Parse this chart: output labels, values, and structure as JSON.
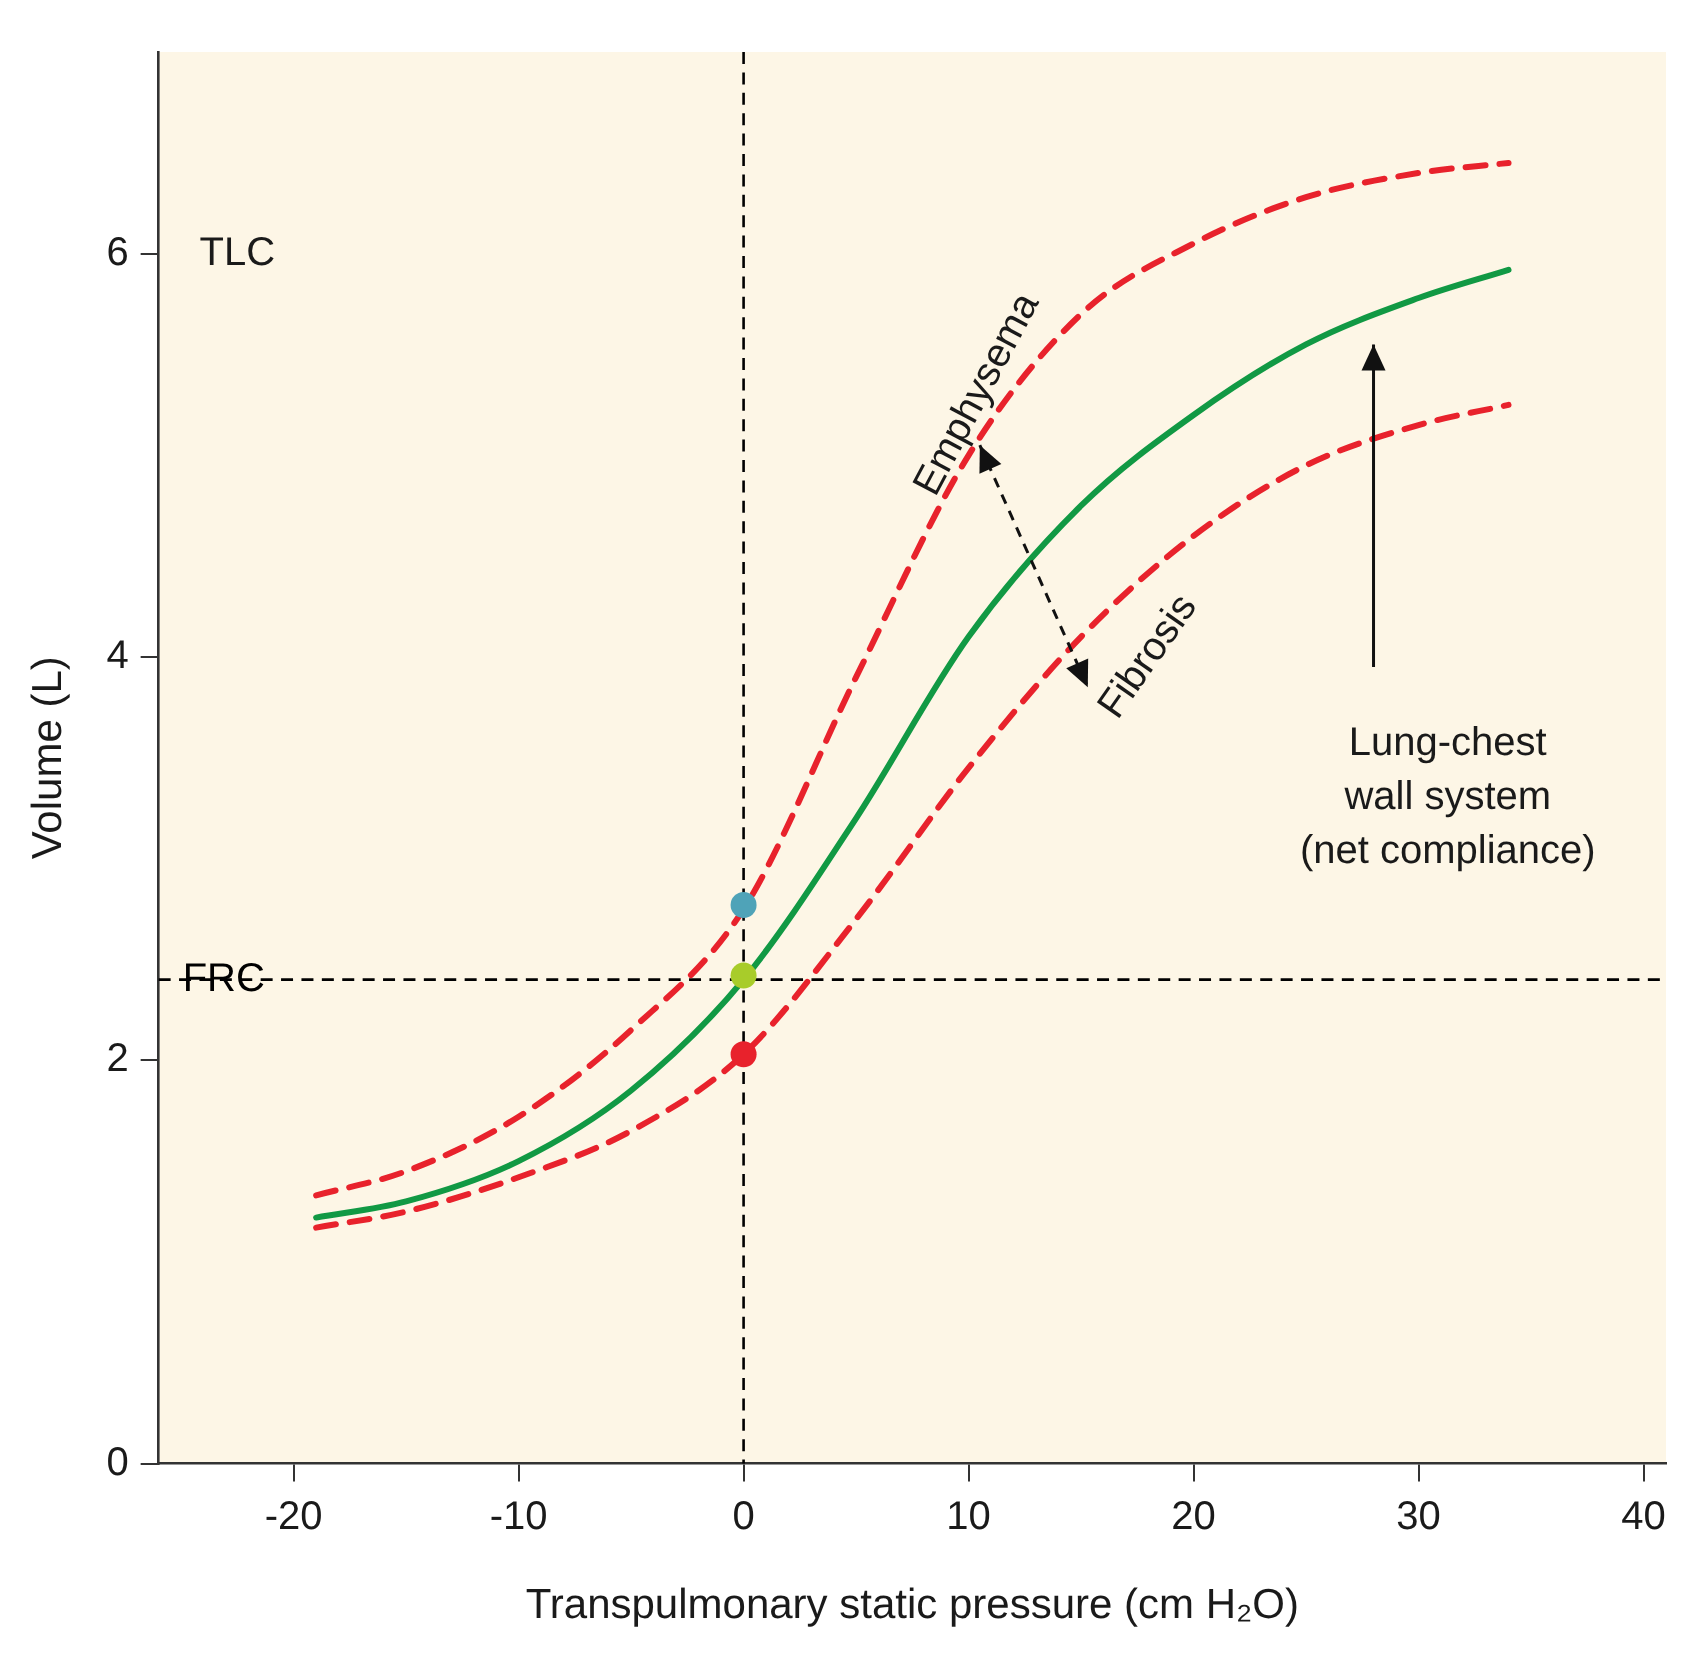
{
  "chart_data": {
    "type": "line",
    "xlabel": "Transpulmonary static pressure (cm H₂O)",
    "ylabel": "Volume (L)",
    "xlim": [
      -26,
      41
    ],
    "ylim": [
      0,
      7
    ],
    "xticks": [
      -20,
      -10,
      0,
      10,
      20,
      30,
      40
    ],
    "yticks": [
      0,
      2,
      4,
      6
    ],
    "grid": false,
    "legend": false,
    "marker": "none",
    "series": [
      {
        "color": "#119944",
        "line_style": "solid",
        "x": [
          -19,
          -15,
          -10,
          -5,
          0,
          5,
          10,
          15,
          20,
          25,
          30,
          34
        ],
        "values": [
          1.22,
          1.3,
          1.5,
          1.85,
          2.4,
          3.2,
          4.1,
          4.75,
          5.2,
          5.55,
          5.78,
          5.92
        ]
      },
      {
        "name": "Emphysema",
        "color": "#e8222c",
        "line_style": "dashed",
        "x": [
          -19,
          -15,
          -10,
          -5,
          0,
          5,
          10,
          15,
          20,
          25,
          30,
          34
        ],
        "values": [
          1.33,
          1.45,
          1.72,
          2.15,
          2.75,
          3.9,
          5.0,
          5.7,
          6.05,
          6.28,
          6.4,
          6.45
        ]
      },
      {
        "name": "Fibrosis",
        "color": "#e8222c",
        "line_style": "dashed",
        "x": [
          -19,
          -15,
          -10,
          -5,
          0,
          5,
          10,
          15,
          20,
          25,
          30,
          34
        ],
        "values": [
          1.17,
          1.25,
          1.42,
          1.65,
          2.03,
          2.7,
          3.45,
          4.1,
          4.6,
          4.95,
          5.15,
          5.25
        ]
      },
      {
        "type": "scatter",
        "marker": "circle",
        "x": [
          0,
          0,
          0
        ],
        "values": [
          2.77,
          2.42,
          2.03
        ],
        "colors": [
          "#4fa3b8",
          "#a8cc2a",
          "#e8222c"
        ]
      }
    ],
    "ref_lines": [
      {
        "axis": "x",
        "value": 0,
        "color": "#000000",
        "line_style": "dashed"
      },
      {
        "axis": "y",
        "value": 2.4,
        "label": "FRC",
        "color": "#000000",
        "line_style": "dashed"
      }
    ],
    "annotations": [
      "TLC",
      "Lung-chest\nwall system\n(net compliance)"
    ]
  }
}
